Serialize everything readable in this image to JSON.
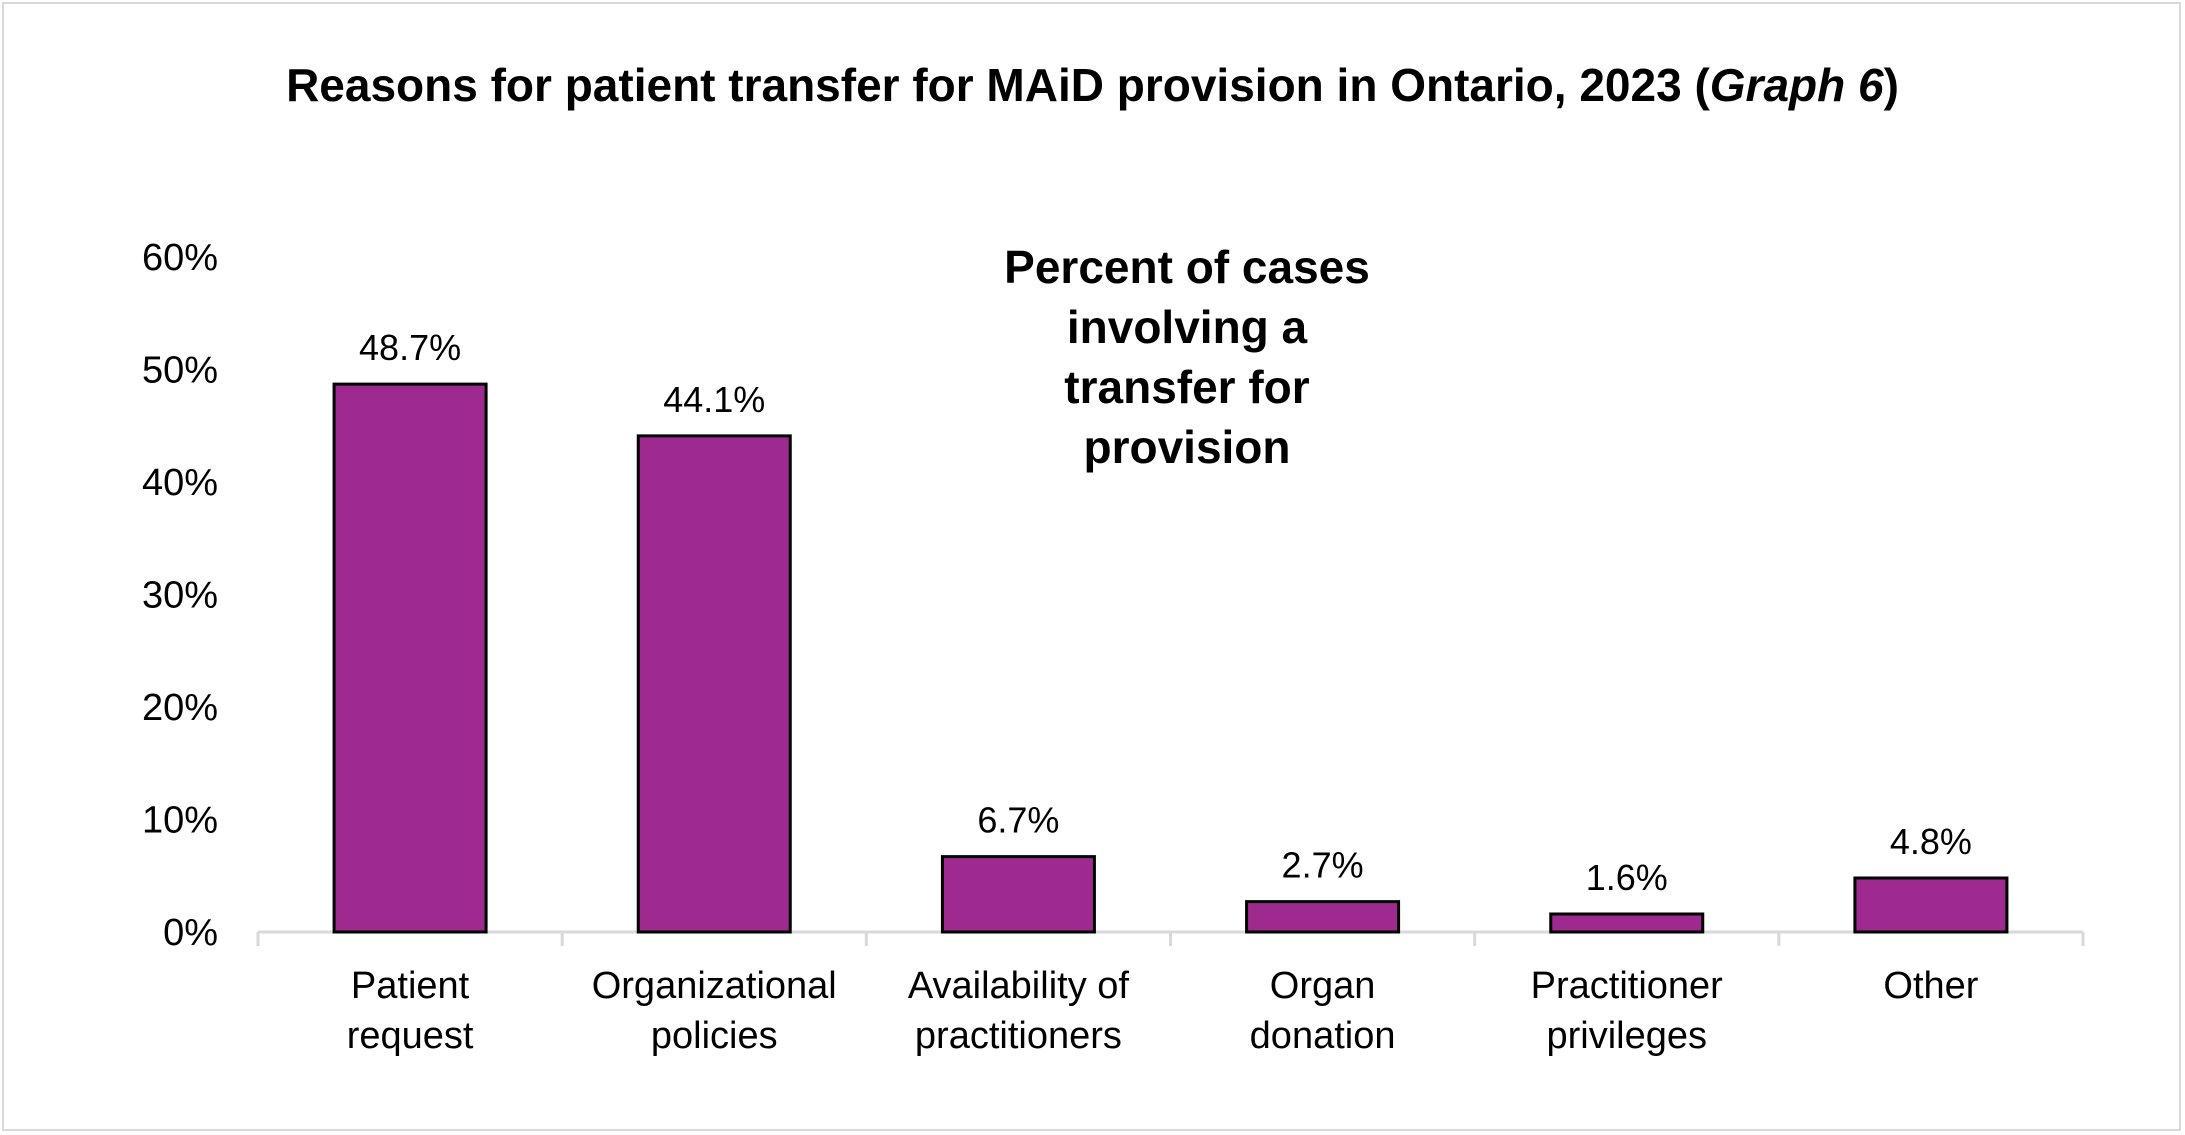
{
  "chart_data": {
    "type": "bar",
    "title": "Reasons for patient transfer for MAiD provision in Ontario, 2023 (Graph 6)",
    "title_parts": {
      "main": "Reasons for patient transfer for MAiD provision in Ontario, 2023 (",
      "italic": "Graph 6",
      "close": ")"
    },
    "annotation": [
      "Percent of cases",
      "involving a",
      "transfer for",
      "provision"
    ],
    "categories": [
      [
        "Patient",
        "request"
      ],
      [
        "Organizational",
        "policies"
      ],
      [
        "Availability of",
        "practitioners"
      ],
      [
        "Organ",
        "donation"
      ],
      [
        "Practitioner",
        "privileges"
      ],
      [
        "Other"
      ]
    ],
    "values": [
      48.7,
      44.1,
      6.7,
      2.7,
      1.6,
      4.8
    ],
    "data_labels": [
      "48.7%",
      "44.1%",
      "6.7%",
      "2.7%",
      "1.6%",
      "4.8%"
    ],
    "ylim": [
      0,
      60
    ],
    "yticks": [
      0,
      10,
      20,
      30,
      40,
      50,
      60
    ],
    "ytick_labels": [
      "0%",
      "10%",
      "20%",
      "30%",
      "40%",
      "50%",
      "60%"
    ],
    "grid": false,
    "bar_color": "#9e2a8f",
    "bar_edge_color": "#000000",
    "axis_color": "#d9d9d9"
  }
}
